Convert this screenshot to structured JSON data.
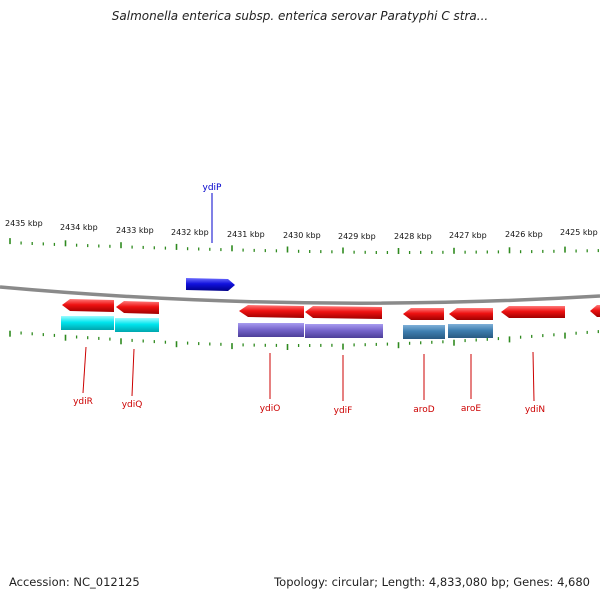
{
  "title": "Salmonella enterica subsp. enterica serovar Paratyphi C stra...",
  "footer": {
    "accession": "Accession: NC_012125",
    "summary": "Topology: circular; Length: 4,833,080 bp; Genes: 4,680"
  },
  "colors": {
    "backbone": "#8a8a8a",
    "ticks": "#2f8a1f",
    "label_red": "#cc0000",
    "label_blue": "#0000cc",
    "gene_red": "#ee1111",
    "gene_blue": "#1111dd",
    "cyan": "#00e5ee",
    "purple": "#7766cc",
    "steel": "#3f7fb0"
  },
  "kbp_labels": [
    "2435 kbp",
    "2434 kbp",
    "2433 kbp",
    "2432 kbp",
    "2431 kbp",
    "2430 kbp",
    "2429 kbp",
    "2428 kbp",
    "2427 kbp",
    "2426 kbp",
    "2425 kbp"
  ],
  "genes": [
    {
      "name": "ydiR",
      "strand": "-",
      "color": "red"
    },
    {
      "name": "ydiQ",
      "strand": "-",
      "color": "red"
    },
    {
      "name": "ydiP",
      "strand": "+",
      "color": "blue"
    },
    {
      "name": "ydiO",
      "strand": "-",
      "color": "red"
    },
    {
      "name": "ydiF",
      "strand": "-",
      "color": "red"
    },
    {
      "name": "aroD",
      "strand": "-",
      "color": "red"
    },
    {
      "name": "aroE",
      "strand": "-",
      "color": "red"
    },
    {
      "name": "ydiN",
      "strand": "-",
      "color": "red"
    }
  ]
}
